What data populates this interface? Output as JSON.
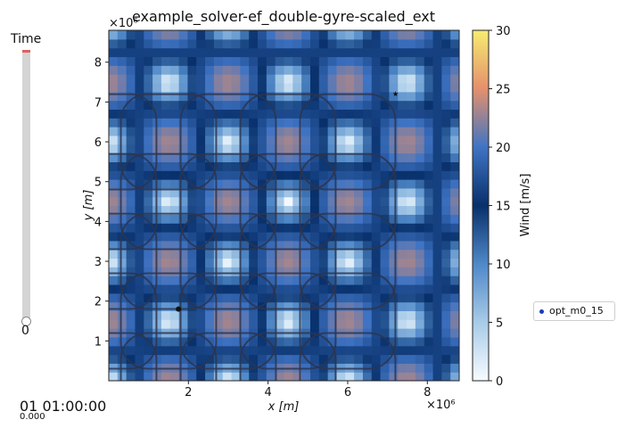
{
  "slider": {
    "label": "Time",
    "value": "0",
    "position": 0
  },
  "clock": {
    "time": "01 01:00:00",
    "sub": "0.000"
  },
  "legend": {
    "label": "opt_m0_15",
    "dot_color": "#1a3db8"
  },
  "chart_data": {
    "type": "heatmap",
    "title": "example_solver-ef_double-gyre-scaled_ext",
    "xlabel": "x [m]",
    "ylabel": "y [m]",
    "x_multiplier": "×10⁶",
    "y_multiplier": "×10⁶",
    "xlim": [
      0,
      8.8
    ],
    "ylim": [
      0,
      8.8
    ],
    "x_ticks": [
      2,
      4,
      6,
      8
    ],
    "y_ticks": [
      1,
      2,
      3,
      4,
      5,
      6,
      7,
      8
    ],
    "field": "double gyre wind speed",
    "gyre_period_m": 3.0,
    "gyre_centres_x": [
      1.5,
      4.5,
      7.5
    ],
    "gyre_centres_y": [
      1.5,
      4.5,
      7.5
    ],
    "colorbar": {
      "label": "Wind [m/s]",
      "min": 0,
      "max": 30,
      "ticks": [
        0,
        5,
        10,
        15,
        20,
        25,
        30
      ],
      "stops": [
        {
          "v": 0,
          "color": "#f7fbff"
        },
        {
          "v": 5,
          "color": "#a8cbe8"
        },
        {
          "v": 10,
          "color": "#4f88c8"
        },
        {
          "v": 15,
          "color": "#08306b"
        },
        {
          "v": 20,
          "color": "#3f74c4"
        },
        {
          "v": 25,
          "color": "#e4906c"
        },
        {
          "v": 30,
          "color": "#f7ec71"
        }
      ]
    },
    "markers": [
      {
        "kind": "start",
        "x": 1.75,
        "y": 1.8,
        "symbol": "dot"
      },
      {
        "kind": "target",
        "x": 7.2,
        "y": 7.2,
        "symbol": "star"
      }
    ],
    "grid": false
  }
}
